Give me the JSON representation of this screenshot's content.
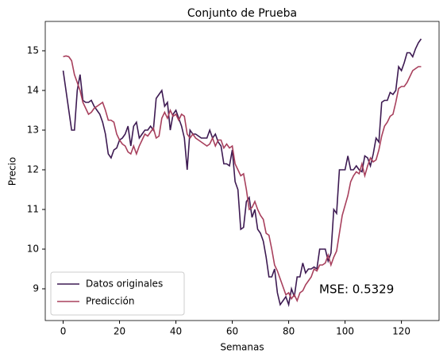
{
  "chart_data": {
    "type": "line",
    "title": "Conjunto de Prueba",
    "xlabel": "Semanas",
    "ylabel": "Precio",
    "x": [
      0,
      1,
      2,
      3,
      4,
      5,
      6,
      7,
      8,
      9,
      10,
      11,
      12,
      13,
      14,
      15,
      16,
      17,
      18,
      19,
      20,
      21,
      22,
      23,
      24,
      25,
      26,
      27,
      28,
      29,
      30,
      31,
      32,
      33,
      34,
      35,
      36,
      37,
      38,
      39,
      40,
      41,
      42,
      43,
      44,
      45,
      46,
      47,
      48,
      49,
      50,
      51,
      52,
      53,
      54,
      55,
      56,
      57,
      58,
      59,
      60,
      61,
      62,
      63,
      64,
      65,
      66,
      67,
      68,
      69,
      70,
      71,
      72,
      73,
      74,
      75,
      76,
      77,
      78,
      79,
      80,
      81,
      82,
      83,
      84,
      85,
      86,
      87,
      88,
      89,
      90,
      91,
      92,
      93,
      94,
      95,
      96,
      97,
      98,
      99,
      100,
      101,
      102,
      103,
      104,
      105,
      106,
      107,
      108,
      109,
      110,
      111,
      112,
      113,
      114,
      115,
      116,
      117,
      118,
      119,
      120,
      121,
      122,
      123,
      124,
      125,
      126,
      127
    ],
    "series": [
      {
        "name": "Datos originales",
        "color": "#3d1a52",
        "values": [
          14.5,
          14.0,
          13.5,
          13.0,
          13.0,
          14.0,
          14.4,
          13.75,
          13.7,
          13.7,
          13.75,
          13.6,
          13.5,
          13.4,
          13.2,
          12.9,
          12.4,
          12.3,
          12.5,
          12.55,
          12.75,
          12.8,
          12.9,
          13.1,
          12.6,
          13.1,
          13.2,
          12.8,
          12.9,
          13.0,
          13.0,
          13.1,
          13.0,
          13.8,
          13.9,
          14.0,
          13.6,
          13.7,
          13.0,
          13.4,
          13.5,
          13.3,
          13.1,
          12.8,
          12.0,
          13.0,
          12.9,
          12.9,
          12.85,
          12.8,
          12.8,
          12.8,
          13.0,
          12.8,
          12.9,
          12.7,
          12.6,
          12.15,
          12.15,
          12.1,
          12.5,
          11.7,
          11.5,
          10.5,
          10.55,
          11.2,
          11.3,
          10.8,
          11.0,
          10.5,
          10.4,
          10.2,
          9.8,
          9.3,
          9.3,
          9.5,
          8.9,
          8.6,
          8.7,
          8.8,
          8.6,
          9.0,
          8.8,
          9.3,
          9.3,
          9.65,
          9.4,
          9.5,
          9.5,
          9.55,
          9.5,
          10.0,
          10.0,
          10.0,
          9.7,
          9.9,
          11.0,
          10.9,
          12.0,
          12.0,
          12.0,
          12.35,
          12.0,
          12.0,
          12.1,
          12.0,
          11.95,
          12.35,
          12.3,
          12.1,
          12.4,
          12.8,
          12.7,
          13.7,
          13.75,
          13.75,
          13.95,
          13.9,
          14.0,
          14.6,
          14.5,
          14.7,
          14.95,
          14.95,
          14.85,
          15.05,
          15.2,
          15.3
        ]
      },
      {
        "name": "Predicción",
        "color": "#a8405d",
        "values": [
          14.85,
          14.87,
          14.85,
          14.75,
          14.4,
          14.2,
          14.0,
          13.7,
          13.55,
          13.4,
          13.45,
          13.55,
          13.6,
          13.65,
          13.7,
          13.5,
          13.25,
          13.25,
          13.2,
          12.9,
          12.75,
          12.65,
          12.6,
          12.45,
          12.4,
          12.6,
          12.4,
          12.6,
          12.75,
          12.9,
          12.85,
          12.95,
          13.05,
          12.8,
          12.85,
          13.3,
          13.45,
          13.3,
          13.5,
          13.35,
          13.4,
          13.25,
          13.4,
          13.35,
          12.9,
          12.8,
          12.9,
          12.8,
          12.75,
          12.7,
          12.65,
          12.6,
          12.65,
          12.8,
          12.6,
          12.75,
          12.75,
          12.55,
          12.65,
          12.55,
          12.6,
          12.15,
          12.0,
          11.85,
          11.9,
          11.5,
          11.0,
          11.05,
          11.2,
          11.0,
          10.85,
          10.75,
          10.4,
          10.35,
          10.0,
          9.6,
          9.45,
          9.25,
          9.05,
          8.85,
          8.9,
          8.75,
          8.85,
          8.7,
          8.9,
          8.95,
          9.1,
          9.2,
          9.3,
          9.5,
          9.45,
          9.6,
          9.6,
          9.65,
          9.85,
          9.6,
          9.8,
          9.95,
          10.4,
          10.85,
          11.1,
          11.35,
          11.7,
          11.85,
          11.95,
          11.9,
          12.15,
          11.85,
          12.1,
          12.3,
          12.2,
          12.25,
          12.5,
          12.85,
          13.1,
          13.2,
          13.35,
          13.4,
          13.7,
          14.05,
          14.1,
          14.1,
          14.2,
          14.35,
          14.5,
          14.55,
          14.6,
          14.6
        ]
      }
    ],
    "xlim": [
      -6.35,
      133.35
    ],
    "ylim": [
      8.2,
      15.74
    ],
    "xticks": [
      0,
      20,
      40,
      60,
      80,
      100,
      120
    ],
    "yticks": [
      9,
      10,
      11,
      12,
      13,
      14,
      15
    ],
    "legend": "lower left",
    "grid": false,
    "annotation": "MSE: 0.5329"
  }
}
